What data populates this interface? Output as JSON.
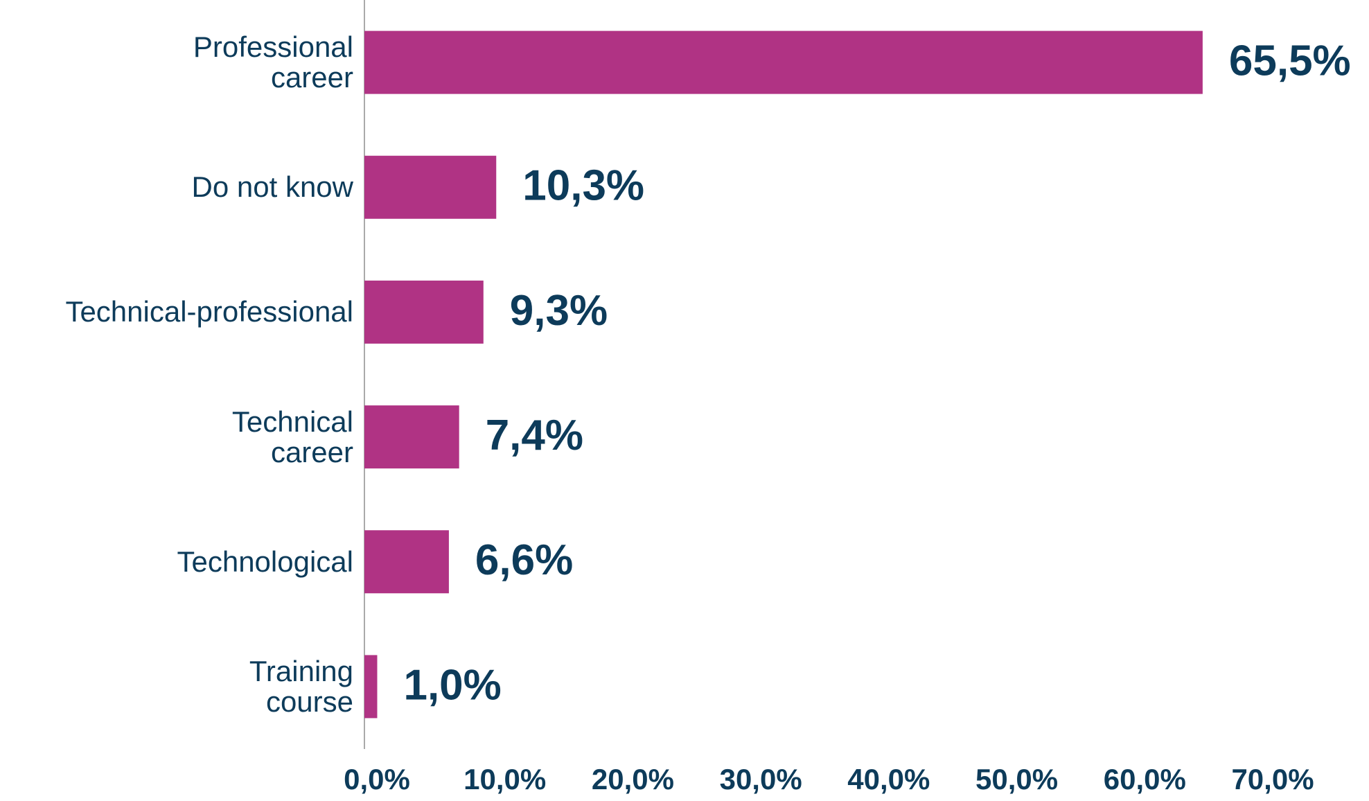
{
  "chart_data": {
    "type": "bar",
    "orientation": "horizontal",
    "categories": [
      "Professional\ncareer",
      "Do not know",
      "Technical-professional",
      "Technical\ncareer",
      "Technological",
      "Training\ncourse"
    ],
    "values": [
      65.5,
      10.3,
      9.3,
      7.4,
      6.6,
      1.0
    ],
    "value_labels": [
      "65,5%",
      "10,3%",
      "9,3%",
      "7,4%",
      "6,6%",
      "1,0%"
    ],
    "color": "#b03384",
    "xlim": [
      0,
      70
    ],
    "xticks": [
      {
        "value": 0,
        "label": "0,0%"
      },
      {
        "value": 10,
        "label": "10,0%"
      },
      {
        "value": 20,
        "label": "20,0%"
      },
      {
        "value": 30,
        "label": "30,0%"
      },
      {
        "value": 40,
        "label": "40,0%"
      },
      {
        "value": 50,
        "label": "50,0%"
      },
      {
        "value": 60,
        "label": "60,0%"
      },
      {
        "value": 70,
        "label": "70,0%"
      }
    ],
    "grid": false
  }
}
